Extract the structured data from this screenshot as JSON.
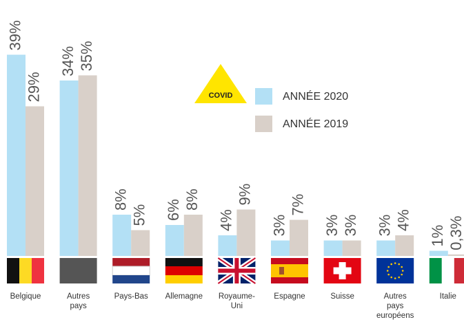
{
  "chart_data": {
    "type": "bar",
    "categories": [
      "Belgique",
      "Autres pays",
      "Pays-Bas",
      "Allemagne",
      "Royaume-Uni",
      "Espagne",
      "Suisse",
      "Autres pays européens",
      "Italie"
    ],
    "series": [
      {
        "name": "ANNÉE 2020",
        "color": "#b3e0f5",
        "values": [
          39,
          34,
          8,
          6,
          4,
          3,
          3,
          3,
          1
        ],
        "value_labels": [
          "39%",
          "34%",
          "8%",
          "6%",
          "4%",
          "3%",
          "3%",
          "3%",
          "1%"
        ]
      },
      {
        "name": "ANNÉE 2019",
        "color": "#d9d0c9",
        "values": [
          29,
          35,
          5,
          8,
          9,
          7,
          3,
          4,
          0.3
        ],
        "value_labels": [
          "29%",
          "35%",
          "5%",
          "8%",
          "9%",
          "7%",
          "3%",
          "4%",
          "0,3%"
        ]
      }
    ],
    "annotation": "COVID"
  }
}
